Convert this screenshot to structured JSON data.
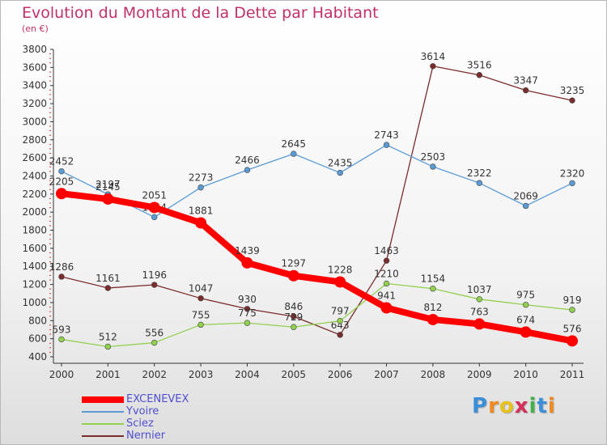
{
  "header": {
    "title": "Evolution du Montant de la Dette par Habitant",
    "unit": "(en €)"
  },
  "logo": {
    "letters": [
      "P",
      "r",
      "o",
      "x",
      "i",
      "t",
      "i"
    ],
    "colors": [
      "#3a8fd8",
      "#f08a1e",
      "#e8c21a",
      "#d6305a",
      "#43b04a",
      "#3a8fd8",
      "#f08a1e"
    ]
  },
  "chart_data": {
    "type": "line",
    "title": "Evolution du Montant de la Dette par Habitant",
    "xlabel": "",
    "ylabel": "(en €)",
    "categories": [
      "2000",
      "2001",
      "2002",
      "2003",
      "2004",
      "2005",
      "2006",
      "2007",
      "2008",
      "2009",
      "2010",
      "2011"
    ],
    "ylim": [
      400,
      3800
    ],
    "yticks": [
      400,
      600,
      800,
      1000,
      1200,
      1400,
      1600,
      1800,
      2000,
      2200,
      2400,
      2600,
      2800,
      3000,
      3200,
      3400,
      3600,
      3800
    ],
    "grid": false,
    "legend_position": "bottom-left",
    "series": [
      {
        "name": "EXCENEVEX",
        "color": "#ff0000",
        "values": [
          2205,
          2145,
          2051,
          1881,
          1439,
          1297,
          1228,
          941,
          812,
          763,
          674,
          576
        ]
      },
      {
        "name": "Yvoire",
        "color": "#5b9bd5",
        "values": [
          2452,
          2197,
          1944,
          2273,
          2466,
          2645,
          2435,
          2743,
          2503,
          2322,
          2069,
          2320
        ]
      },
      {
        "name": "Sciez",
        "color": "#92d050",
        "values": [
          593,
          512,
          556,
          755,
          775,
          729,
          797,
          1210,
          1154,
          1037,
          975,
          919
        ]
      },
      {
        "name": "Nernier",
        "color": "#7b2c2c",
        "values": [
          1286,
          1161,
          1196,
          1047,
          930,
          846,
          643,
          1463,
          3614,
          3516,
          3347,
          3235
        ]
      }
    ]
  }
}
